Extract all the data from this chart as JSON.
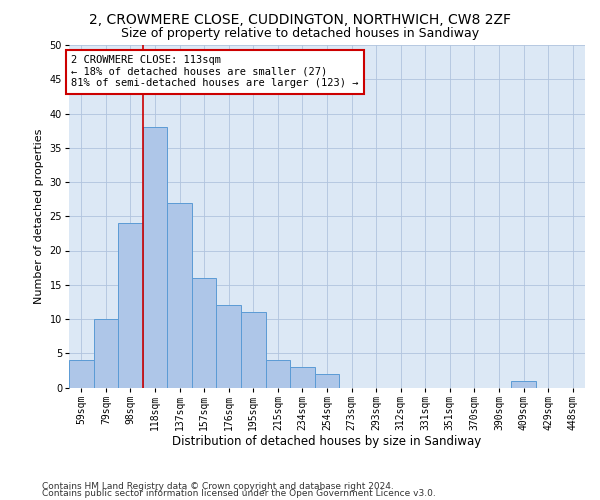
{
  "title1": "2, CROWMERE CLOSE, CUDDINGTON, NORTHWICH, CW8 2ZF",
  "title2": "Size of property relative to detached houses in Sandiway",
  "xlabel": "Distribution of detached houses by size in Sandiway",
  "ylabel": "Number of detached properties",
  "bin_labels": [
    "59sqm",
    "79sqm",
    "98sqm",
    "118sqm",
    "137sqm",
    "157sqm",
    "176sqm",
    "195sqm",
    "215sqm",
    "234sqm",
    "254sqm",
    "273sqm",
    "293sqm",
    "312sqm",
    "331sqm",
    "351sqm",
    "370sqm",
    "390sqm",
    "409sqm",
    "429sqm",
    "448sqm"
  ],
  "bar_heights": [
    4,
    10,
    24,
    38,
    27,
    16,
    12,
    11,
    4,
    3,
    2,
    0,
    0,
    0,
    0,
    0,
    0,
    0,
    1,
    0,
    0
  ],
  "bar_color": "#aec6e8",
  "bar_edge_color": "#5b9bd5",
  "vline_x": 2.5,
  "vline_color": "#cc0000",
  "annotation_text": "2 CROWMERE CLOSE: 113sqm\n← 18% of detached houses are smaller (27)\n81% of semi-detached houses are larger (123) →",
  "annotation_box_color": "#ffffff",
  "annotation_box_edge": "#cc0000",
  "ylim": [
    0,
    50
  ],
  "yticks": [
    0,
    5,
    10,
    15,
    20,
    25,
    30,
    35,
    40,
    45,
    50
  ],
  "footer1": "Contains HM Land Registry data © Crown copyright and database right 2024.",
  "footer2": "Contains public sector information licensed under the Open Government Licence v3.0.",
  "bg_color": "#ffffff",
  "plot_bg_color": "#dce8f5",
  "grid_color": "#b0c4de",
  "title1_fontsize": 10,
  "title2_fontsize": 9,
  "xlabel_fontsize": 8.5,
  "ylabel_fontsize": 8,
  "tick_fontsize": 7,
  "annot_fontsize": 7.5,
  "footer_fontsize": 6.5
}
